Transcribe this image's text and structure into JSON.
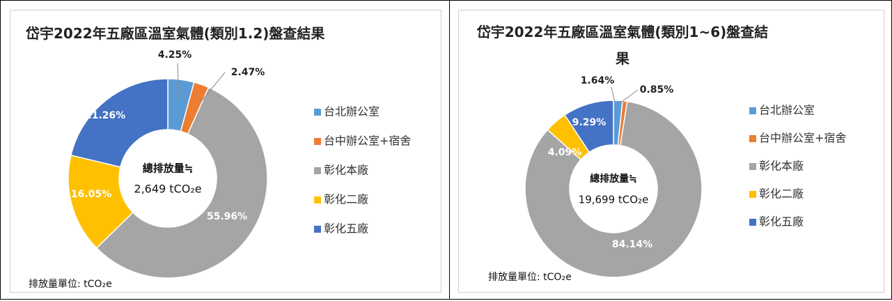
{
  "chart_data": [
    {
      "type": "pie",
      "donut": true,
      "title": "岱宇2022年五廠區溫室氣體(類別1.2)盤查結果",
      "categories": [
        "台北辦公室",
        "台中辦公室+宿舍",
        "彰化本廠",
        "彰化二廠",
        "彰化五廠"
      ],
      "values": [
        4.25,
        2.47,
        55.96,
        16.05,
        21.26
      ],
      "value_labels": [
        "4.25%",
        "2.47%",
        "55.96%",
        "16.05%",
        "21.26%"
      ],
      "colors": [
        "#5B9BD5",
        "#ED7D31",
        "#A5A5A5",
        "#FFC000",
        "#4472C4"
      ],
      "center_text": [
        "總排放量≒",
        "2,649 tCO₂e"
      ],
      "unit_note": "排放量單位: tCO₂e",
      "legend": "right"
    },
    {
      "type": "pie",
      "donut": true,
      "title": "岱宇2022年五廠區溫室氣體(類別1~6)盤查結果",
      "categories": [
        "台北辦公室",
        "台中辦公室+宿舍",
        "彰化本廠",
        "彰化二廠",
        "彰化五廠"
      ],
      "values": [
        1.64,
        0.85,
        84.14,
        4.09,
        9.29
      ],
      "value_labels": [
        "1.64%",
        "0.85%",
        "84.14%",
        "4.09%",
        "9.29%"
      ],
      "colors": [
        "#5B9BD5",
        "#ED7D31",
        "#A5A5A5",
        "#FFC000",
        "#4472C4"
      ],
      "center_text": [
        "總排放量≒",
        "19,699 tCO₂e"
      ],
      "unit_note": "排放量單位: tCO₂e",
      "legend": "right"
    }
  ]
}
